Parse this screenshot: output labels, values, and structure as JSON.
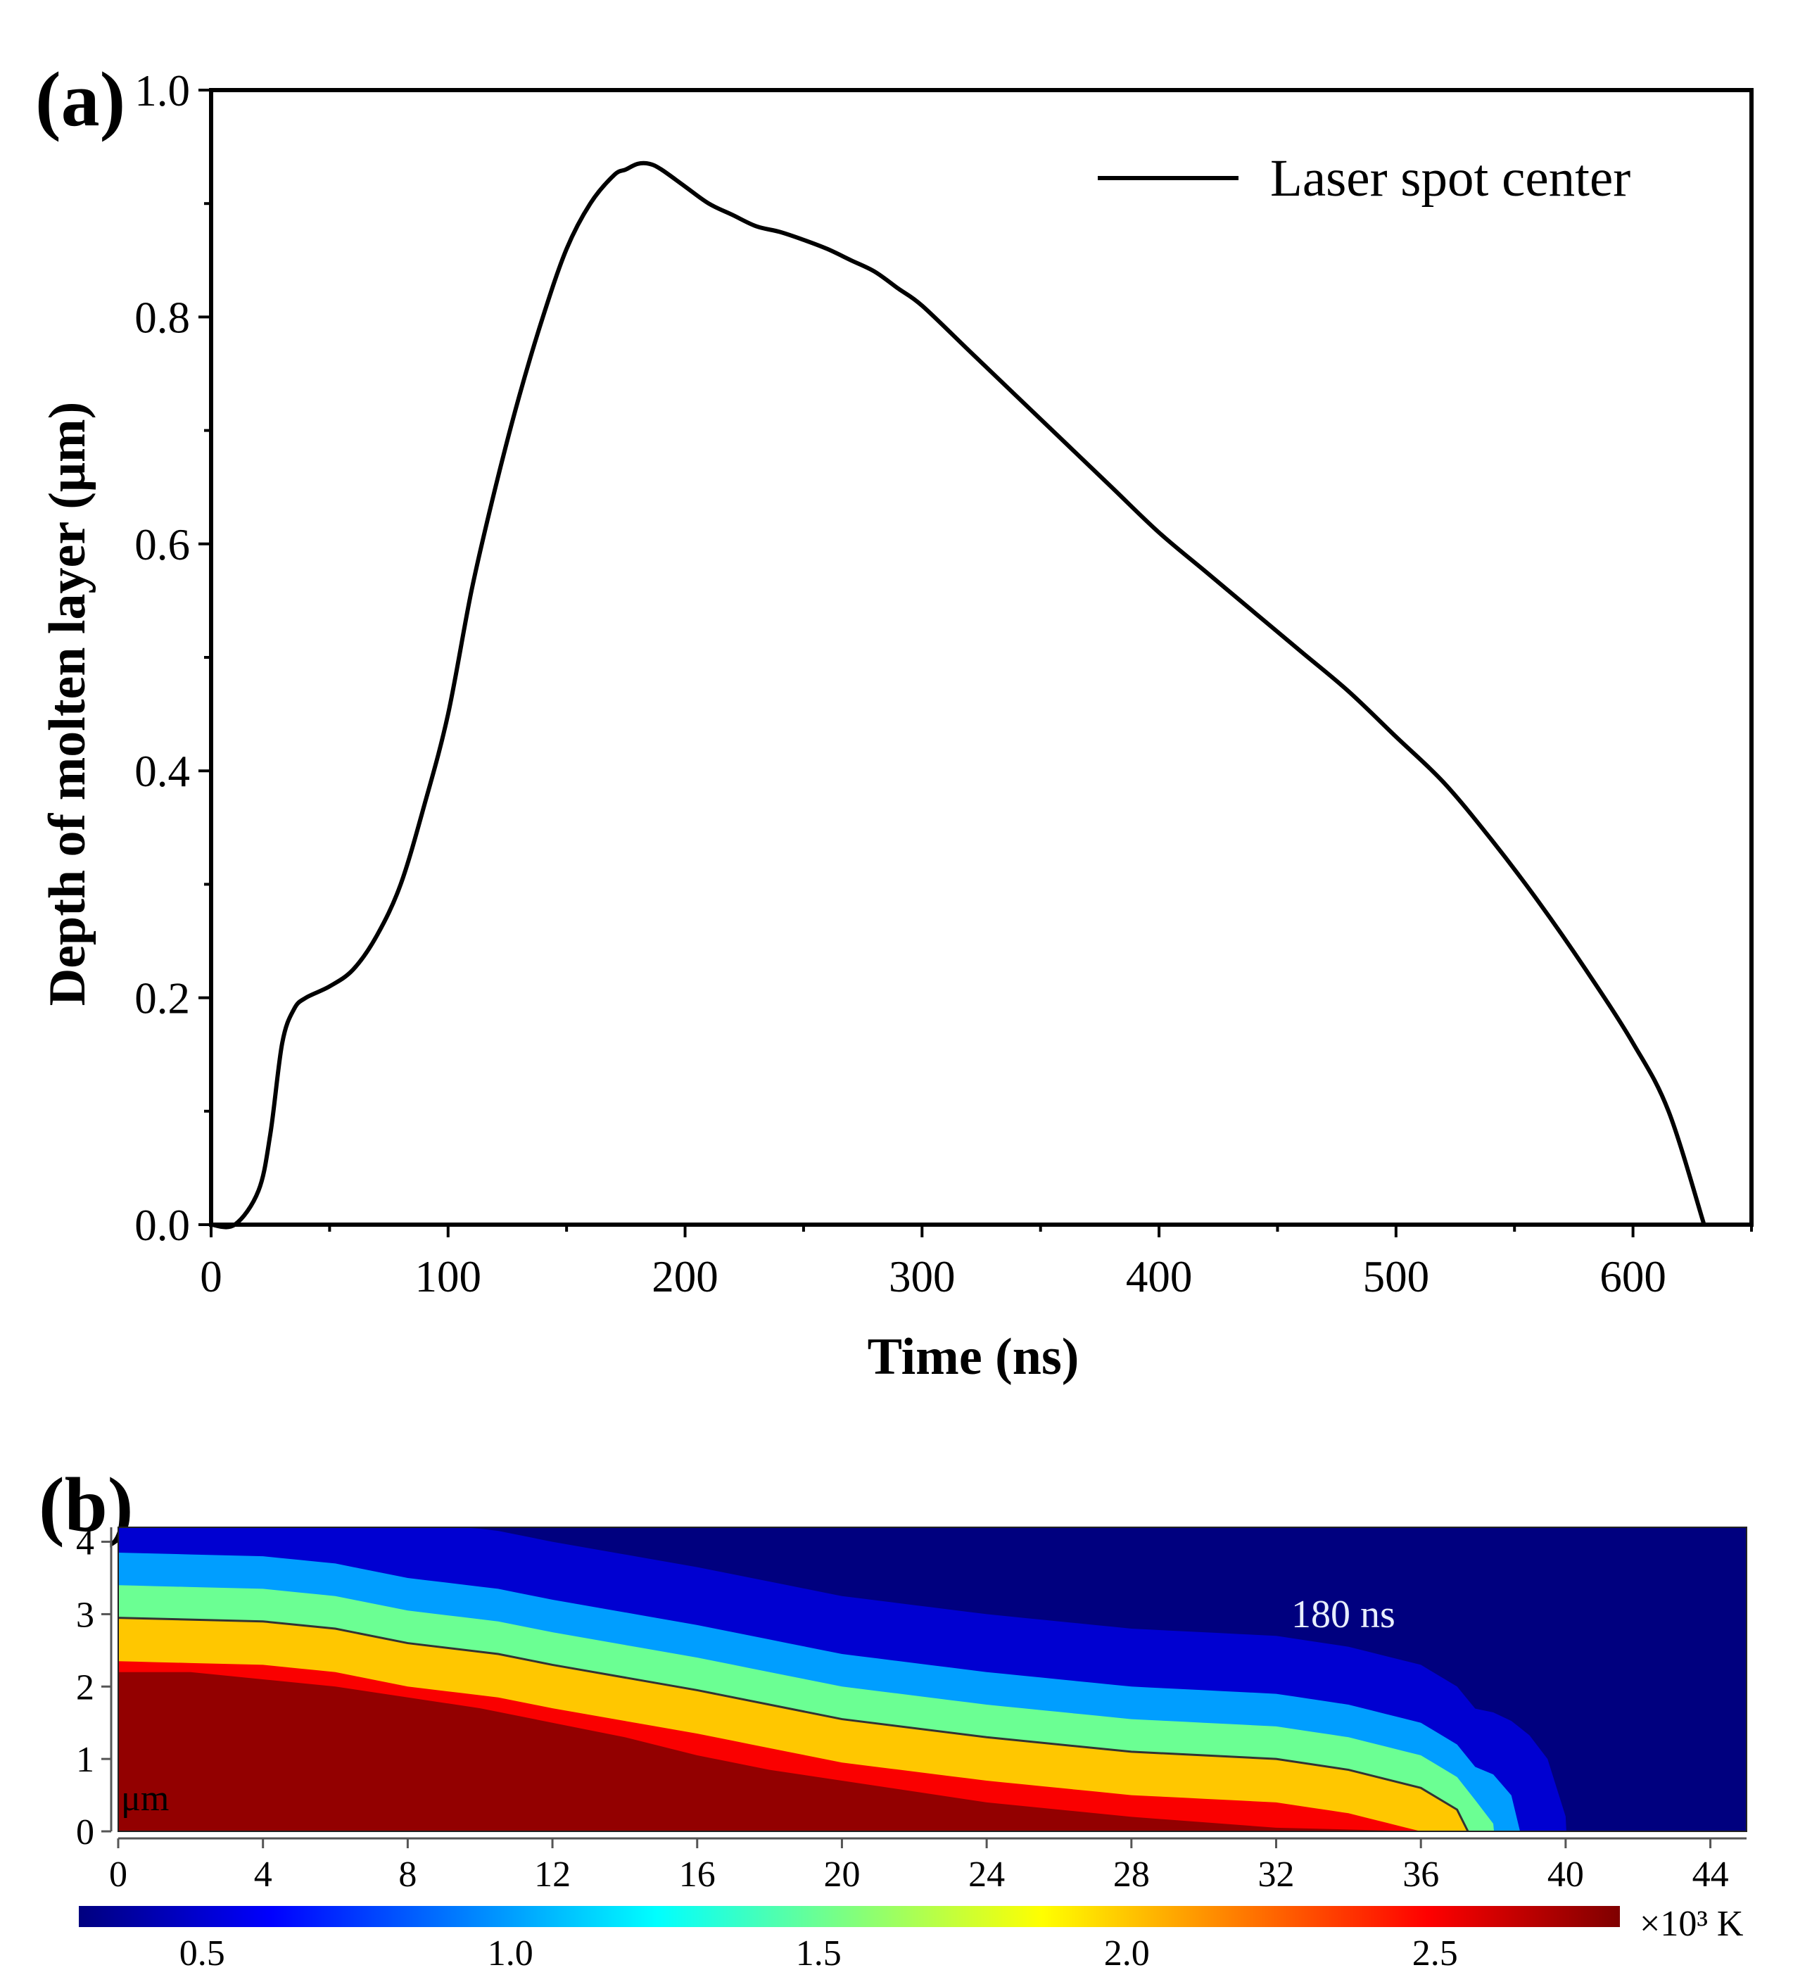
{
  "panel_a": {
    "panel_label": "(a)",
    "legend": "Laser spot center",
    "xlabel": "Time (ns)",
    "ylabel": "Depth of molten layer (μm)",
    "x_ticks": [
      "0",
      "100",
      "200",
      "300",
      "400",
      "500",
      "600"
    ],
    "y_ticks": [
      "0.0",
      "0.2",
      "0.4",
      "0.6",
      "0.8",
      "1.0"
    ]
  },
  "panel_b": {
    "panel_label": "(b)",
    "annotation": "180 ns",
    "unit_label": "μm",
    "x_ticks": [
      "0",
      "4",
      "8",
      "12",
      "16",
      "20",
      "24",
      "28",
      "32",
      "36",
      "40",
      "44"
    ],
    "y_ticks": [
      "0",
      "1",
      "2",
      "3",
      "4"
    ],
    "colorbar_ticks": [
      "0.5",
      "1.0",
      "1.5",
      "2.0",
      "2.5"
    ],
    "colorbar_unit": "×10³ K",
    "colorbar_colors": [
      "#00007f",
      "#0000ff",
      "#007fff",
      "#00ffff",
      "#7fff7f",
      "#ffff00",
      "#ff7f00",
      "#ff0000",
      "#7f0000"
    ]
  },
  "chart_data": [
    {
      "type": "line",
      "title": "",
      "xlabel": "Time (ns)",
      "ylabel": "Depth of molten layer (μm)",
      "xlim": [
        0,
        650
      ],
      "ylim": [
        0,
        1.0
      ],
      "legend_position": "top-right",
      "grid": false,
      "series": [
        {
          "name": "Laser spot center",
          "x": [
            0,
            10,
            20,
            25,
            30,
            35,
            40,
            50,
            60,
            70,
            80,
            90,
            100,
            110,
            120,
            130,
            140,
            150,
            160,
            170,
            175,
            180,
            185,
            190,
            200,
            210,
            220,
            230,
            240,
            250,
            260,
            270,
            280,
            290,
            300,
            320,
            340,
            360,
            380,
            400,
            420,
            440,
            460,
            480,
            500,
            520,
            540,
            560,
            580,
            600,
            615,
            630
          ],
          "y": [
            0,
            0.0,
            0.03,
            0.08,
            0.16,
            0.19,
            0.2,
            0.21,
            0.225,
            0.255,
            0.3,
            0.37,
            0.45,
            0.56,
            0.65,
            0.73,
            0.8,
            0.86,
            0.9,
            0.925,
            0.93,
            0.935,
            0.935,
            0.93,
            0.915,
            0.9,
            0.89,
            0.88,
            0.875,
            0.868,
            0.86,
            0.85,
            0.84,
            0.825,
            0.81,
            0.77,
            0.73,
            0.69,
            0.65,
            0.61,
            0.575,
            0.54,
            0.505,
            0.47,
            0.43,
            0.39,
            0.34,
            0.285,
            0.225,
            0.16,
            0.1,
            0.0
          ]
        }
      ]
    },
    {
      "type": "heatmap",
      "title": "",
      "annotation": "180 ns",
      "xlabel": "",
      "ylabel": "μm",
      "xlim": [
        0,
        45
      ],
      "ylim": [
        0,
        4.2
      ],
      "colorbar": {
        "label": "×10³ K",
        "range": [
          0.3,
          2.8
        ],
        "ticks": [
          0.5,
          1.0,
          1.5,
          2.0,
          2.5
        ],
        "colormap": "jet"
      },
      "melt_front_contour": {
        "x": [
          0,
          4,
          6,
          8,
          10.5,
          12,
          16,
          20,
          24,
          28,
          32,
          34,
          36,
          37,
          37.3
        ],
        "y": [
          2.95,
          2.9,
          2.8,
          2.6,
          2.45,
          2.3,
          1.95,
          1.55,
          1.3,
          1.1,
          1.0,
          0.85,
          0.6,
          0.3,
          0.0
        ]
      },
      "hot_zone_boundary": {
        "x": [
          0,
          2,
          6,
          10,
          12,
          14,
          16,
          18,
          20,
          24,
          28,
          32,
          36,
          38
        ],
        "y": [
          2.2,
          2.2,
          2.0,
          1.7,
          1.5,
          1.3,
          1.05,
          0.85,
          0.7,
          0.4,
          0.2,
          0.05,
          0.0,
          0.0
        ]
      },
      "isotherm_offsets": [
        {
          "T": 2.5,
          "dy": -0.6
        },
        {
          "T": 2.0,
          "dy": 0.0
        },
        {
          "T": 1.5,
          "dy": 0.45
        },
        {
          "T": 1.0,
          "dy": 0.9
        },
        {
          "T": 0.5,
          "dy": 1.7
        }
      ]
    }
  ]
}
